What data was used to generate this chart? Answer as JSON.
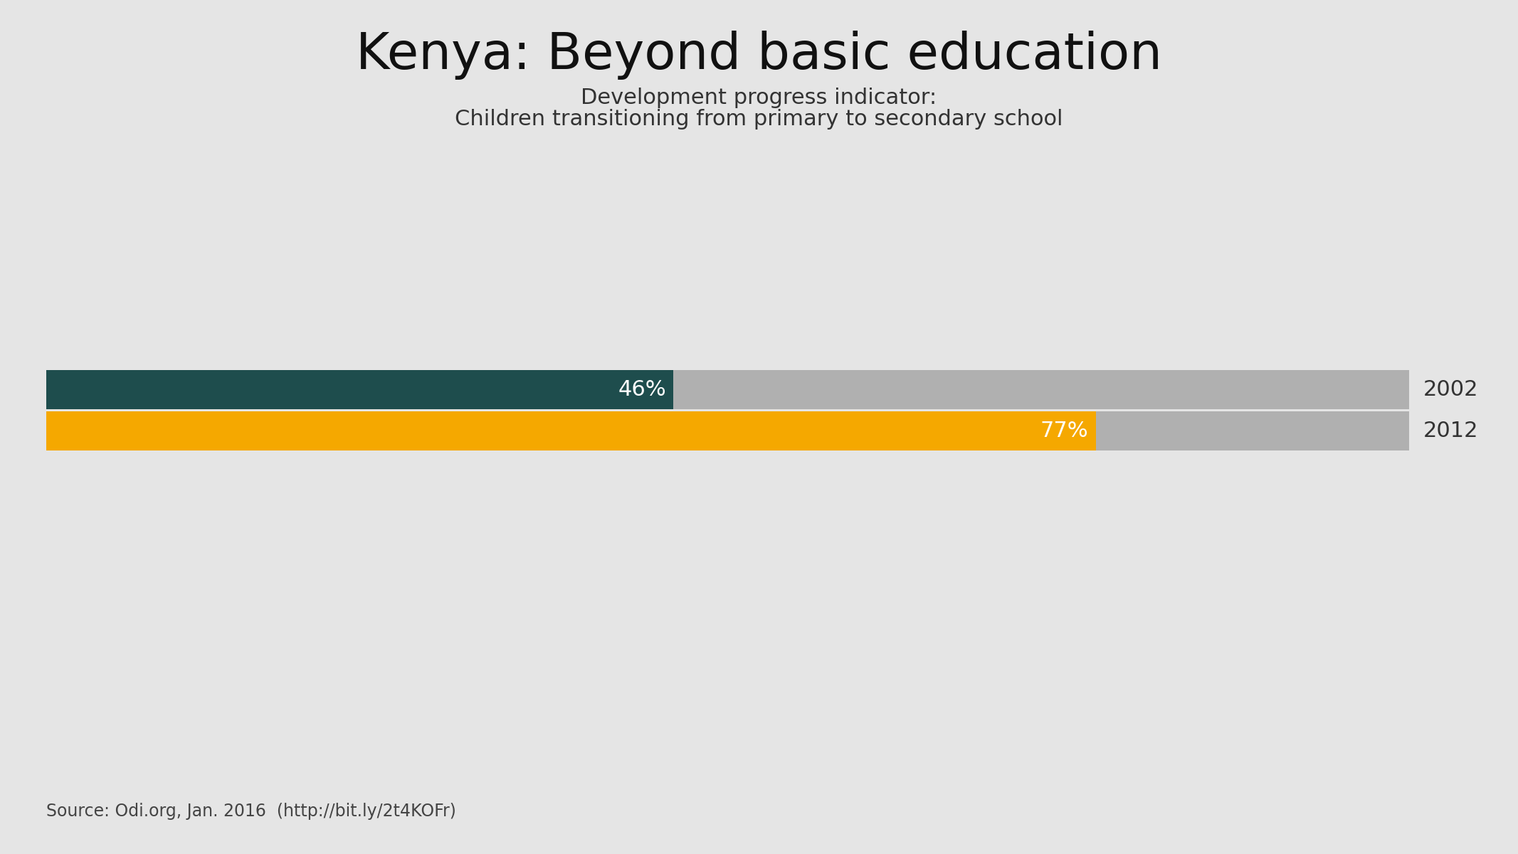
{
  "title": "Kenya: Beyond basic education",
  "subtitle_line1": "Development progress indicator:",
  "subtitle_line2": "Children transitioning from primary to secondary school",
  "background_color": "#e5e5e5",
  "bars": [
    {
      "year": "2002",
      "value": 46,
      "bar_color": "#1e4d4d",
      "bg_color": "#b0b0b0",
      "label": "46%"
    },
    {
      "year": "2012",
      "value": 77,
      "bar_color": "#f5a800",
      "bg_color": "#b0b0b0",
      "label": "77%"
    }
  ],
  "max_value": 100,
  "source_text": "Source: Odi.org, Jan. 2016  (http://bit.ly/2t4KOFr)",
  "title_fontsize": 52,
  "subtitle_fontsize": 22,
  "label_fontsize": 22,
  "year_fontsize": 22,
  "source_fontsize": 17,
  "title_color": "#111111",
  "subtitle_color": "#333333",
  "label_color": "#ffffff",
  "year_color": "#333333",
  "source_color": "#444444"
}
